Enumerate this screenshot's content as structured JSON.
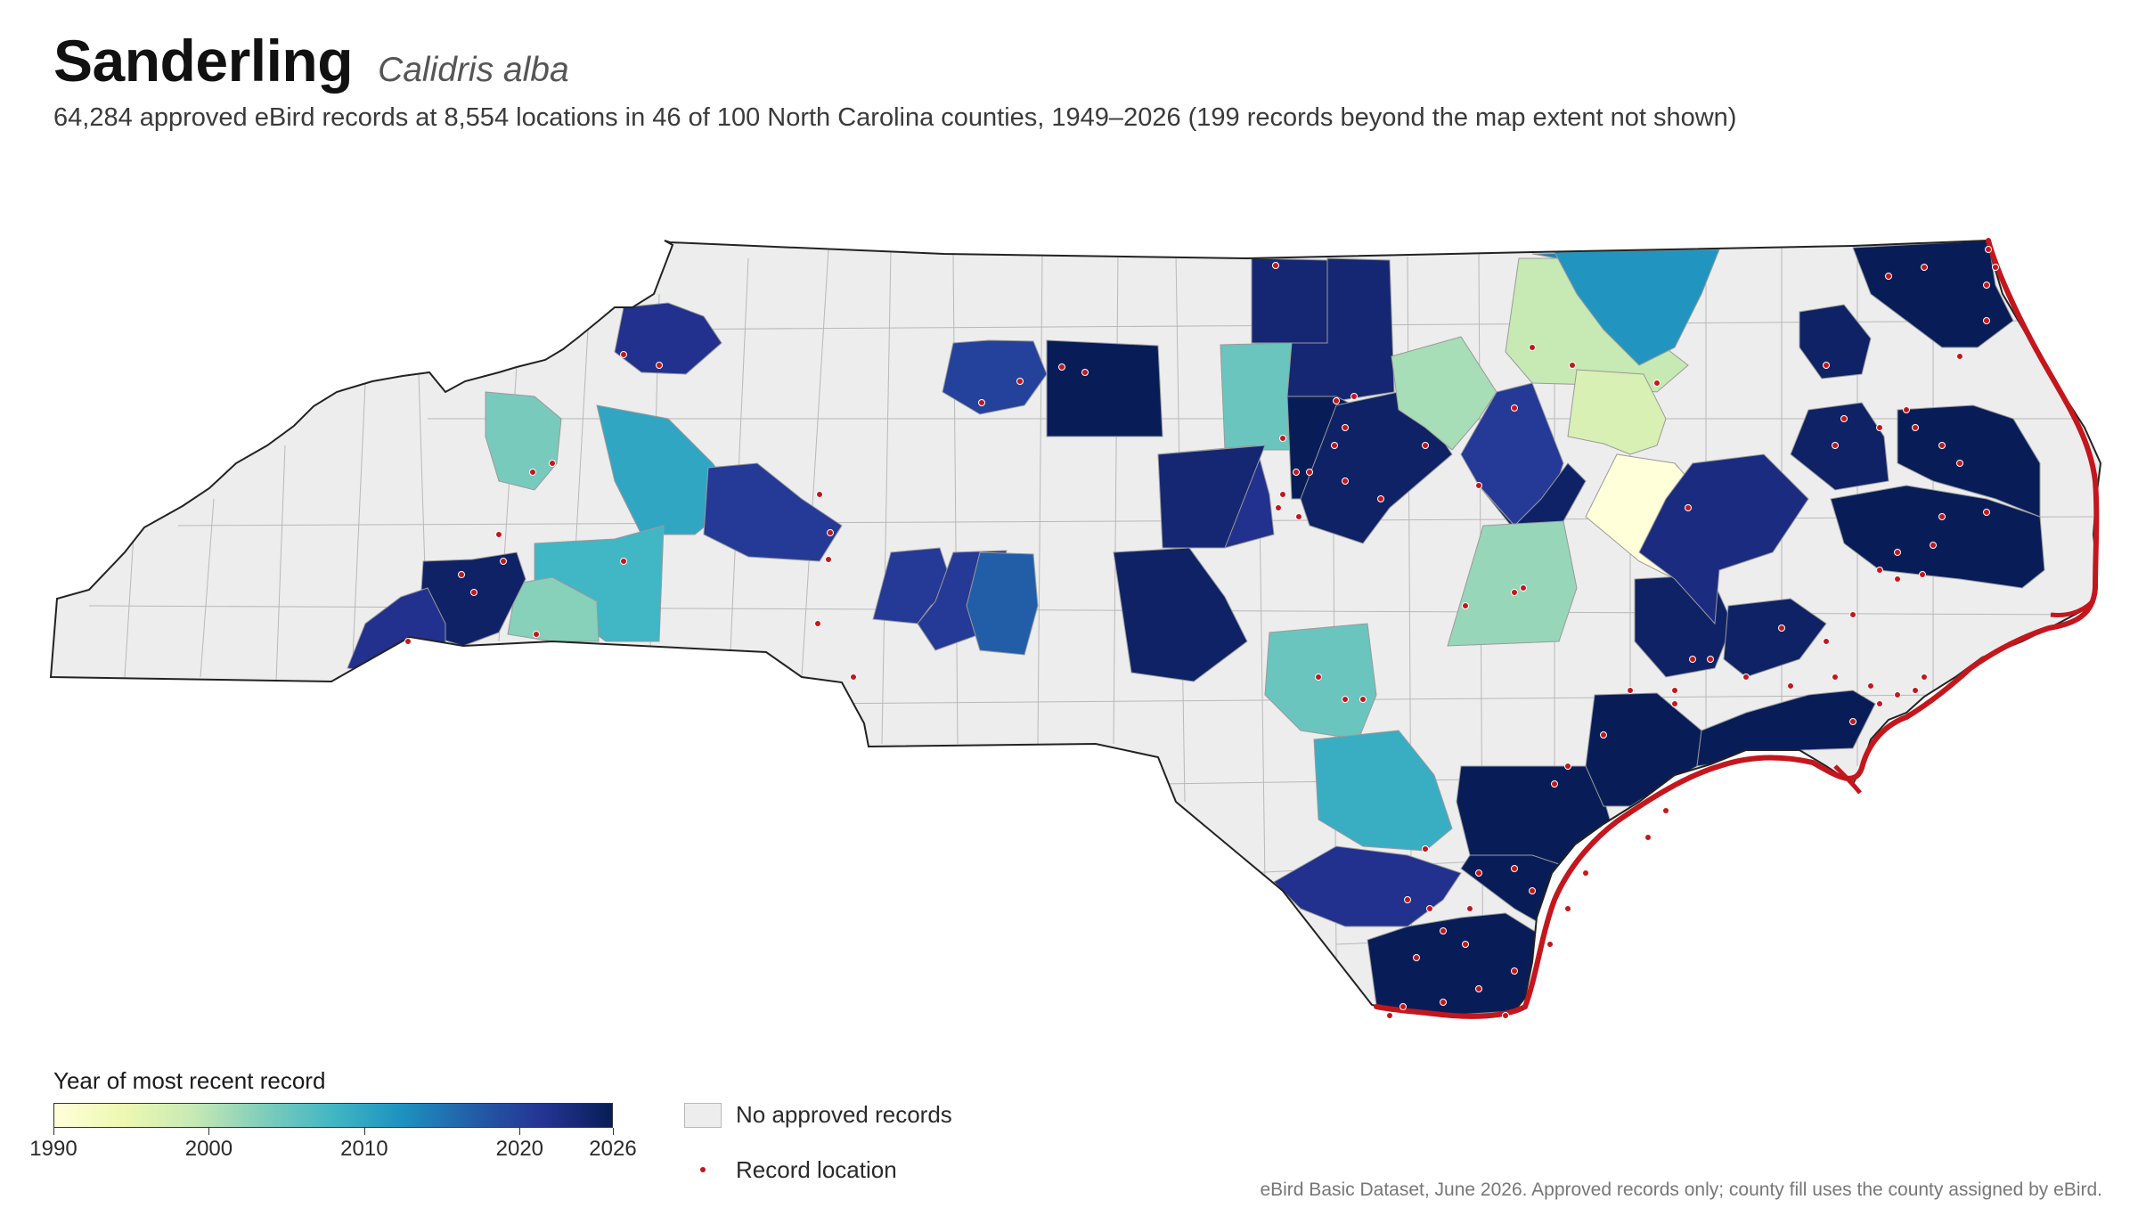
{
  "header": {
    "species": "Sanderling",
    "scientific": "Calidris alba",
    "subtitle": "64,284 approved eBird records at 8,554 locations in 46 of 100 North Carolina counties, 1949–2026 (199 records beyond the map extent not shown)"
  },
  "legend": {
    "title": "Year of most recent record",
    "range": [
      1990,
      2026
    ],
    "ticks": [
      {
        "year": 1990,
        "label": "1990"
      },
      {
        "year": 2000,
        "label": "2000"
      },
      {
        "year": 2010,
        "label": "2010"
      },
      {
        "year": 2020,
        "label": "2020"
      },
      {
        "year": 2026,
        "label": "2026"
      }
    ],
    "scale_colors": [
      "#ffffd9",
      "#edf8b1",
      "#c7e9b4",
      "#7fcdbb",
      "#41b6c4",
      "#1d91c0",
      "#225ea8",
      "#253494",
      "#081d58"
    ],
    "no_records_label": "No approved records",
    "no_records_color": "#ededed",
    "record_label": "Record location",
    "record_color": "#c4161c"
  },
  "map": {
    "state_outline_color": "#222222",
    "county_border_color": "#b0b0b0",
    "counties_with_records": [
      {
        "area": "Ashe",
        "year": 2022
      },
      {
        "area": "Madison",
        "year": 2004
      },
      {
        "area": "Buncombe",
        "year": 2010
      },
      {
        "area": "Burke",
        "year": 2021
      },
      {
        "area": "Rutherford",
        "year": 2008
      },
      {
        "area": "Polk",
        "year": 2003
      },
      {
        "area": "Henderson",
        "year": 2025
      },
      {
        "area": "Transylvania",
        "year": 2022
      },
      {
        "area": "Forsyth",
        "year": 2020
      },
      {
        "area": "Guilford",
        "year": 2026
      },
      {
        "area": "Alamance",
        "year": 2005
      },
      {
        "area": "Person",
        "year": 2024
      },
      {
        "area": "Granville",
        "year": 2024
      },
      {
        "area": "Durham",
        "year": 2026
      },
      {
        "area": "Wake",
        "year": 2025
      },
      {
        "area": "Franklin",
        "year": 2001
      },
      {
        "area": "Warren",
        "year": 1999
      },
      {
        "area": "Halifax",
        "year": 2014
      },
      {
        "area": "Nash",
        "year": 2021
      },
      {
        "area": "Edgecombe",
        "year": 1997
      },
      {
        "area": "Wilson",
        "year": 2025
      },
      {
        "area": "Pitt",
        "year": 1990
      },
      {
        "area": "Johnston",
        "year": 2002
      },
      {
        "area": "Iredell",
        "year": 2021
      },
      {
        "area": "Rowan",
        "year": 2022
      },
      {
        "area": "Mecklenburg",
        "year": 2021
      },
      {
        "area": "Stanly",
        "year": 2017
      },
      {
        "area": "Chatham",
        "year": 2025
      },
      {
        "area": "Moore",
        "year": 2024
      },
      {
        "area": "Cumberland",
        "year": 2005
      },
      {
        "area": "Robeson",
        "year": 2009
      },
      {
        "area": "Columbus",
        "year": 2022
      },
      {
        "area": "Brunswick",
        "year": 2026
      },
      {
        "area": "New Hanover",
        "year": 2026
      },
      {
        "area": "Pender",
        "year": 2026
      },
      {
        "area": "Onslow",
        "year": 2026
      },
      {
        "area": "Carteret",
        "year": 2026
      },
      {
        "area": "Craven",
        "year": 2025
      },
      {
        "area": "Pamlico",
        "year": 2025
      },
      {
        "area": "Beaufort",
        "year": 2023
      },
      {
        "area": "Hyde",
        "year": 2026
      },
      {
        "area": "Tyrrell",
        "year": 2025
      },
      {
        "area": "Dare",
        "year": 2026
      },
      {
        "area": "Currituck",
        "year": 2026
      },
      {
        "area": "Camden",
        "year": 2025
      },
      {
        "area": "Northampton",
        "year": 2012
      }
    ]
  },
  "source_note": "eBird Basic Dataset, June 2026. Approved records only; county fill uses the county assigned by eBird."
}
